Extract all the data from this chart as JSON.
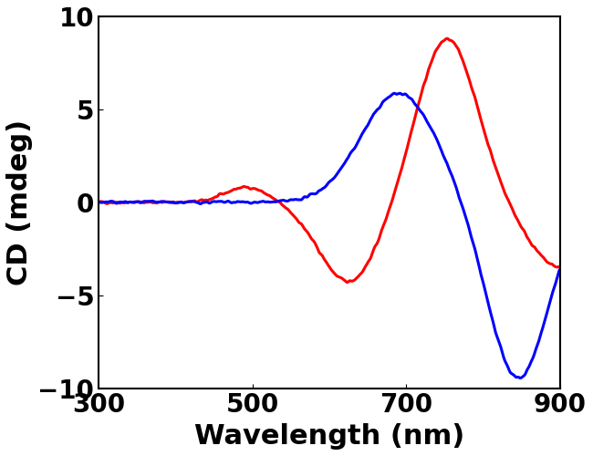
{
  "title": "",
  "xlabel": "Wavelength (nm)",
  "ylabel": "CD (mdeg)",
  "xlim": [
    300,
    900
  ],
  "ylim": [
    -10,
    10
  ],
  "xticks": [
    300,
    500,
    700,
    900
  ],
  "yticks": [
    -10,
    -5,
    0,
    5,
    10
  ],
  "red_color": "#ff0000",
  "blue_color": "#0000ff",
  "background_color": "#ffffff",
  "linewidth": 2.2,
  "xlabel_fontsize": 22,
  "ylabel_fontsize": 22,
  "tick_fontsize": 20,
  "figsize": [
    6.5,
    5.0
  ],
  "dpi": 100
}
